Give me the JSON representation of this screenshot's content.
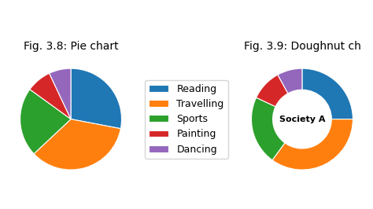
{
  "chart_data": [
    {
      "type": "pie",
      "title": "Fig. 3.8: Pie chart",
      "categories": [
        "Reading",
        "Travelling",
        "Sports",
        "Painting",
        "Dancing"
      ],
      "values": [
        28,
        35,
        22,
        8,
        7
      ],
      "legend": "center"
    },
    {
      "type": "doughnut",
      "title": "Fig. 3.9: Doughnut ch",
      "values": [
        25,
        35,
        22,
        10,
        8
      ],
      "annotations": [
        "Society A"
      ]
    }
  ]
}
